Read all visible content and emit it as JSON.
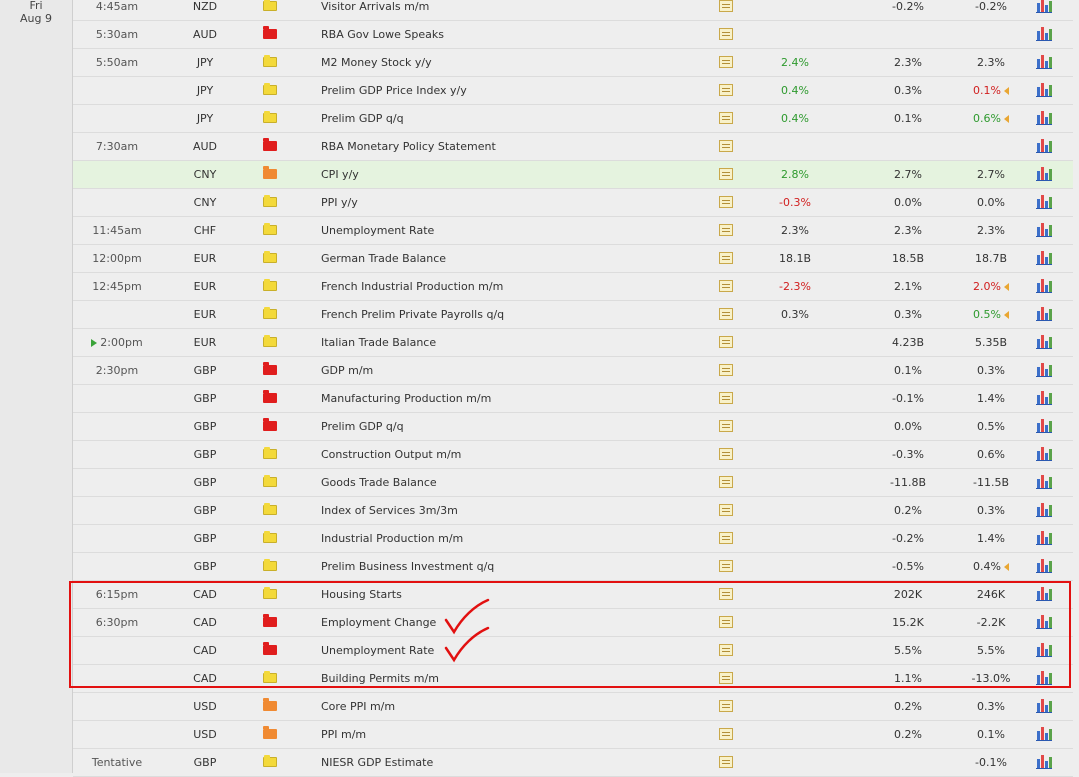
{
  "date": {
    "day": "Fri",
    "date": "Aug 9"
  },
  "rows": [
    {
      "time": "4:45am",
      "cur": "NZD",
      "imp": "low",
      "name": "Visitor Arrivals m/m",
      "actual": "",
      "forecast": "-0.2%",
      "previous": "-0.2%"
    },
    {
      "time": "5:30am",
      "cur": "AUD",
      "imp": "high",
      "name": "RBA Gov Lowe Speaks",
      "actual": "",
      "forecast": "",
      "previous": ""
    },
    {
      "time": "5:50am",
      "cur": "JPY",
      "imp": "low",
      "name": "M2 Money Stock y/y",
      "actual": "2.4%",
      "actual_color": "green",
      "forecast": "2.3%",
      "previous": "2.3%"
    },
    {
      "time": "",
      "cur": "JPY",
      "imp": "low",
      "name": "Prelim GDP Price Index y/y",
      "actual": "0.4%",
      "actual_color": "green",
      "forecast": "0.3%",
      "previous": "0.1%",
      "previous_color": "red"
    },
    {
      "time": "",
      "cur": "JPY",
      "imp": "low",
      "name": "Prelim GDP q/q",
      "actual": "0.4%",
      "actual_color": "green",
      "forecast": "0.1%",
      "previous": "0.6%",
      "previous_color": "green"
    },
    {
      "time": "7:30am",
      "cur": "AUD",
      "imp": "high",
      "name": "RBA Monetary Policy Statement",
      "actual": "",
      "forecast": "",
      "previous": ""
    },
    {
      "time": "",
      "cur": "CNY",
      "imp": "med",
      "name": "CPI y/y",
      "actual": "2.8%",
      "actual_color": "green",
      "forecast": "2.7%",
      "previous": "2.7%",
      "highlight": true
    },
    {
      "time": "",
      "cur": "CNY",
      "imp": "low",
      "name": "PPI y/y",
      "actual": "-0.3%",
      "actual_color": "red",
      "forecast": "0.0%",
      "previous": "0.0%"
    },
    {
      "time": "11:45am",
      "cur": "CHF",
      "imp": "low",
      "name": "Unemployment Rate",
      "actual": "2.3%",
      "forecast": "2.3%",
      "previous": "2.3%"
    },
    {
      "time": "12:00pm",
      "cur": "EUR",
      "imp": "low",
      "name": "German Trade Balance",
      "actual": "18.1B",
      "forecast": "18.5B",
      "previous": "18.7B"
    },
    {
      "time": "12:45pm",
      "cur": "EUR",
      "imp": "low",
      "name": "French Industrial Production m/m",
      "actual": "-2.3%",
      "actual_color": "red",
      "forecast": "2.1%",
      "previous": "2.0%",
      "previous_color": "red"
    },
    {
      "time": "",
      "cur": "EUR",
      "imp": "low",
      "name": "French Prelim Private Payrolls q/q",
      "actual": "0.3%",
      "forecast": "0.3%",
      "previous": "0.5%",
      "previous_color": "green"
    },
    {
      "time": "2:00pm",
      "play": true,
      "cur": "EUR",
      "imp": "low",
      "name": "Italian Trade Balance",
      "actual": "",
      "forecast": "4.23B",
      "previous": "5.35B"
    },
    {
      "time": "2:30pm",
      "cur": "GBP",
      "imp": "high",
      "name": "GDP m/m",
      "actual": "",
      "forecast": "0.1%",
      "previous": "0.3%"
    },
    {
      "time": "",
      "cur": "GBP",
      "imp": "high",
      "name": "Manufacturing Production m/m",
      "actual": "",
      "forecast": "-0.1%",
      "previous": "1.4%"
    },
    {
      "time": "",
      "cur": "GBP",
      "imp": "high",
      "name": "Prelim GDP q/q",
      "actual": "",
      "forecast": "0.0%",
      "previous": "0.5%"
    },
    {
      "time": "",
      "cur": "GBP",
      "imp": "low",
      "name": "Construction Output m/m",
      "actual": "",
      "forecast": "-0.3%",
      "previous": "0.6%"
    },
    {
      "time": "",
      "cur": "GBP",
      "imp": "low",
      "name": "Goods Trade Balance",
      "actual": "",
      "forecast": "-11.8B",
      "previous": "-11.5B"
    },
    {
      "time": "",
      "cur": "GBP",
      "imp": "low",
      "name": "Index of Services 3m/3m",
      "actual": "",
      "forecast": "0.2%",
      "previous": "0.3%"
    },
    {
      "time": "",
      "cur": "GBP",
      "imp": "low",
      "name": "Industrial Production m/m",
      "actual": "",
      "forecast": "-0.2%",
      "previous": "1.4%"
    },
    {
      "time": "",
      "cur": "GBP",
      "imp": "low",
      "name": "Prelim Business Investment q/q",
      "actual": "",
      "forecast": "-0.5%",
      "previous": "0.4%",
      "previous_revised": true
    },
    {
      "time": "6:15pm",
      "cur": "CAD",
      "imp": "low",
      "name": "Housing Starts",
      "actual": "",
      "forecast": "202K",
      "previous": "246K"
    },
    {
      "time": "6:30pm",
      "cur": "CAD",
      "imp": "high",
      "name": "Employment Change",
      "actual": "",
      "forecast": "15.2K",
      "previous": "-2.2K"
    },
    {
      "time": "",
      "cur": "CAD",
      "imp": "high",
      "name": "Unemployment Rate",
      "actual": "",
      "forecast": "5.5%",
      "previous": "5.5%"
    },
    {
      "time": "",
      "cur": "CAD",
      "imp": "low",
      "name": "Building Permits m/m",
      "actual": "",
      "forecast": "1.1%",
      "previous": "-13.0%"
    },
    {
      "time": "",
      "cur": "USD",
      "imp": "med",
      "name": "Core PPI m/m",
      "actual": "",
      "forecast": "0.2%",
      "previous": "0.3%"
    },
    {
      "time": "",
      "cur": "USD",
      "imp": "med",
      "name": "PPI m/m",
      "actual": "",
      "forecast": "0.2%",
      "previous": "0.1%"
    },
    {
      "time": "Tentative",
      "cur": "GBP",
      "imp": "low",
      "name": "NIESR GDP Estimate",
      "actual": "",
      "forecast": "",
      "previous": "-0.1%"
    }
  ]
}
